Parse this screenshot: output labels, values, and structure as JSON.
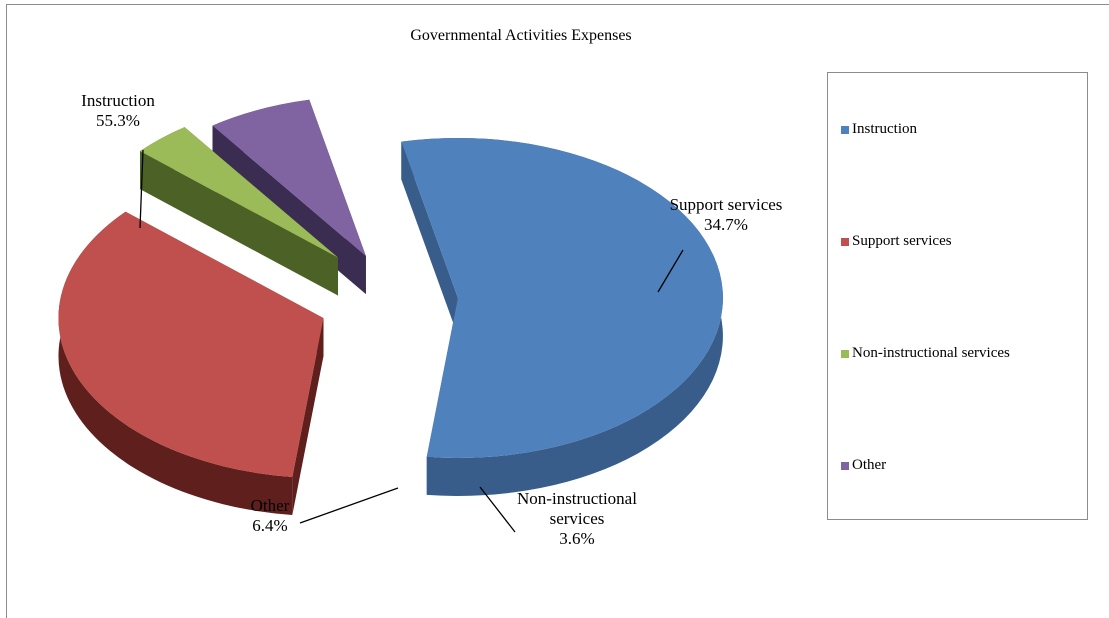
{
  "chart_data": {
    "type": "pie",
    "title": "Governmental Activities Expenses",
    "series": [
      {
        "name": "Instruction",
        "value": 55.3,
        "label": "55.3%",
        "color": "#4F81BD",
        "dark": "#385D8A"
      },
      {
        "name": "Support services",
        "value": 34.7,
        "label": "34.7%",
        "color": "#C0504D",
        "dark": "#5E1F1D"
      },
      {
        "name": "Non-instructional services",
        "value": 3.6,
        "label": "3.6%",
        "color": "#9BBB59",
        "dark": "#4C6126"
      },
      {
        "name": "Other",
        "value": 6.4,
        "label": "6.4%",
        "color": "#8064A2",
        "dark": "#3B2C51"
      }
    ],
    "legend": {
      "position": "right",
      "items": [
        "Instruction",
        "Support services",
        "Non-instructional services",
        "Other"
      ]
    },
    "exploded": true,
    "style": "3d"
  }
}
